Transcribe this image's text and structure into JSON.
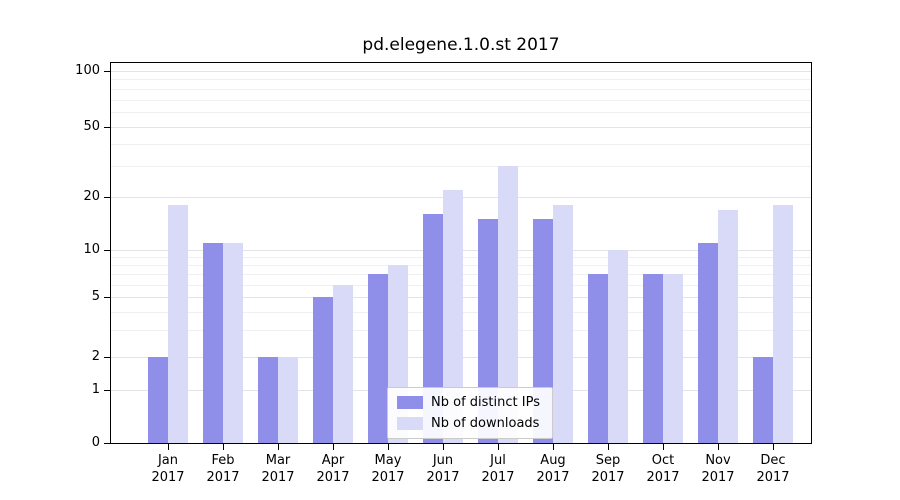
{
  "chart_data": {
    "type": "bar",
    "title": "pd.elegene.1.0.st 2017",
    "xlabel": "",
    "ylabel": "",
    "yscale": "symlog",
    "yticks": [
      0,
      1,
      2,
      5,
      10,
      20,
      50,
      100
    ],
    "ylim": [
      0,
      110
    ],
    "grid": "horizontal",
    "legend_position": "lower center",
    "categories": [
      "Jan 2017",
      "Feb 2017",
      "Mar 2017",
      "Apr 2017",
      "May 2017",
      "Jun 2017",
      "Jul 2017",
      "Aug 2017",
      "Sep 2017",
      "Oct 2017",
      "Nov 2017",
      "Dec 2017"
    ],
    "series": [
      {
        "name": "Nb of distinct IPs",
        "color": "#8f8fe9",
        "values": [
          2,
          11,
          2,
          5,
          7,
          16,
          15,
          15,
          7,
          7,
          11,
          2
        ]
      },
      {
        "name": "Nb of downloads",
        "color": "#d9d9f8",
        "values": [
          18,
          11,
          2,
          6,
          8,
          22,
          30,
          18,
          10,
          7,
          17,
          18
        ]
      }
    ]
  }
}
